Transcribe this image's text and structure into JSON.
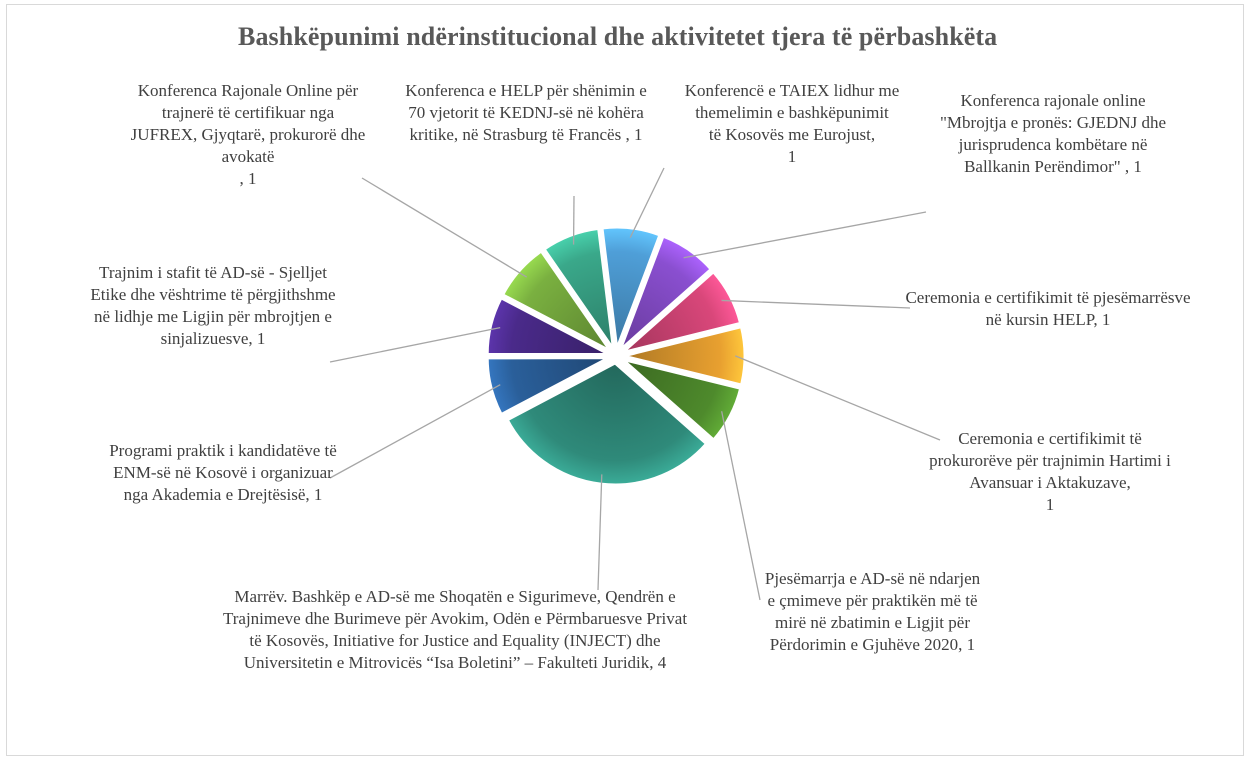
{
  "chart_data": {
    "type": "pie",
    "title": "Bashkëpunimi ndërinstitucional dhe aktivitetet tjera të përbashkëta",
    "slices": [
      {
        "label": "Konferencë e TAIEX lidhur me themelimin e bashkëpunimit\ntë Kosovës me Eurojust,\n1",
        "value": 1,
        "color": "#4f9fd8"
      },
      {
        "label": "Konferenca rajonale online \"Mbrojtja e pronës: GJEDNJ dhe jurisprudenca kombëtare në Ballkanin Perëndimor\" , 1",
        "value": 1,
        "color": "#8a4fd0"
      },
      {
        "label": "Ceremonia e certifikimit të pjesëmarrësve në kursin HELP, 1",
        "value": 1,
        "color": "#d9477a"
      },
      {
        "label": "Ceremonia e certifikimit të prokurorëve për trajnimin Hartimi i Avansuar i Aktakuzave,\n1",
        "value": 1,
        "color": "#e8a030"
      },
      {
        "label": "Pjesëmarrja e AD-së në ndarjen e çmimeve për praktikën më të mirë në zbatimin e Ligjit për Përdorimin e Gjuhëve 2020, 1",
        "value": 1,
        "color": "#4e8a2c"
      },
      {
        "label": "Marrëv. Bashkëp e AD-së me Shoqatën e Sigurimeve, Qendrën e Trajnimeve dhe Burimeve për Avokim, Odën e Përmbaruesve Privat të Kosovës, Initiative for Justice and Equality (INJECT) dhe Universitetin e Mitrovicës “Isa Boletini” – Fakulteti Juridik, 4",
        "value": 4,
        "color": "#2f8a7a"
      },
      {
        "label": "Programi praktik i kandidatëve të ENM-së në Kosovë i organizuar nga Akademia e Drejtësisë, 1",
        "value": 1,
        "color": "#2a5f9a"
      },
      {
        "label": "Trajnim i stafit të AD-së - Sjelljet Etike dhe vështrime të përgjithshme në lidhje me Ligjin për mbrojtjen e sinjalizuesve, 1",
        "value": 1,
        "color": "#4a2a8a"
      },
      {
        "label": "Konferenca Rajonale Online për trajnerë të certifikuar nga JUFREX, Gjyqtarë, prokurorë dhe avokatë\n, 1",
        "value": 1,
        "color": "#7ab040"
      },
      {
        "label": "Konferenca e HELP për shënimin e 70 vjetorit të KEDNJ-së në kohëra kritike, në Strasburg të Francës , 1",
        "value": 1,
        "color": "#3aa88a"
      }
    ]
  }
}
